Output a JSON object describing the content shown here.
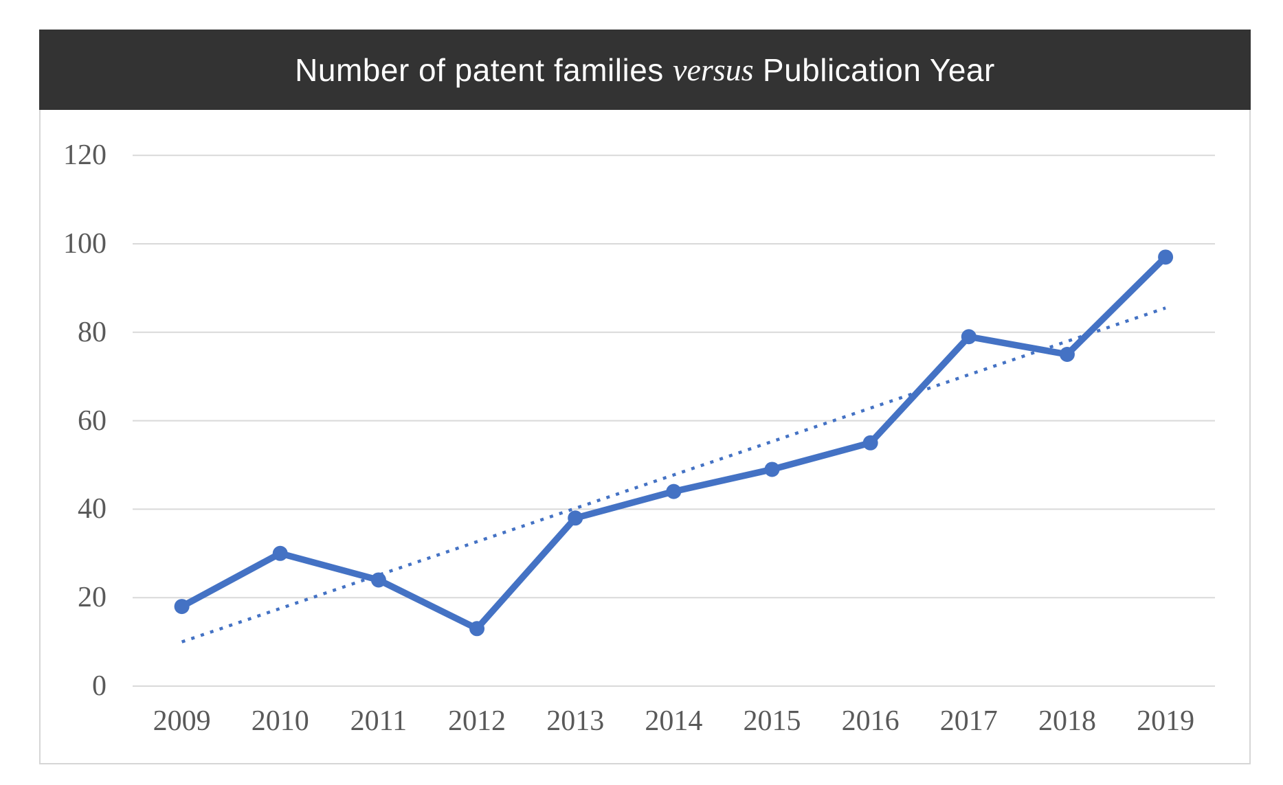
{
  "figure": {
    "title_prefix": "Number of patent families ",
    "title_italic": "versus",
    "title_suffix": " Publication Year",
    "title_band_color": "#333333",
    "title_text_color": "#ffffff"
  },
  "chart_data": {
    "type": "line",
    "title": "Number of patent families versus Publication Year",
    "categories": [
      "2009",
      "2010",
      "2011",
      "2012",
      "2013",
      "2014",
      "2015",
      "2016",
      "2017",
      "2018",
      "2019"
    ],
    "series": [
      {
        "name": "Number of patent families",
        "values": [
          18,
          30,
          24,
          13,
          38,
          44,
          49,
          55,
          79,
          75,
          97
        ]
      }
    ],
    "trendline": {
      "type": "linear",
      "style": "dotted",
      "start_category": "2009",
      "end_category": "2019",
      "start_value": 10,
      "end_value": 85.5
    },
    "xlabel": "",
    "ylabel": "",
    "ylim": [
      0,
      120
    ],
    "yticks": [
      0,
      20,
      40,
      60,
      80,
      100,
      120
    ],
    "grid": "horizontal",
    "legend": "none",
    "line_color": "#4472C4",
    "marker": "circle",
    "gridline_color": "#d9d9d9",
    "tick_label_color": "#595959"
  }
}
